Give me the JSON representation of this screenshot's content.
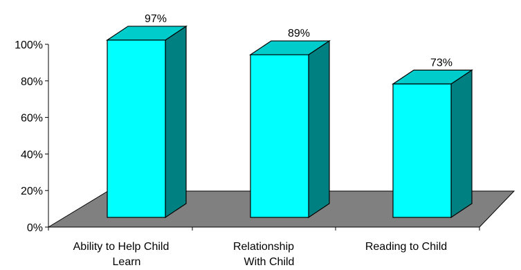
{
  "chart_data": {
    "type": "bar",
    "style": "3d-column",
    "title": "",
    "xlabel": "",
    "ylabel": "",
    "categories": [
      [
        "Ability to Help Child",
        "Learn"
      ],
      [
        "Relationship",
        "With Child"
      ],
      [
        "Reading to Child"
      ]
    ],
    "values": [
      97,
      89,
      73
    ],
    "data_labels": [
      "97%",
      "89%",
      "73%"
    ],
    "ylim": [
      0,
      100
    ],
    "y_ticks": [
      {
        "value": 0,
        "label": "0%"
      },
      {
        "value": 20,
        "label": "20%"
      },
      {
        "value": 40,
        "label": "40%"
      },
      {
        "value": 60,
        "label": "60%"
      },
      {
        "value": 80,
        "label": "80%"
      },
      {
        "value": 100,
        "label": "100%"
      }
    ],
    "grid": false,
    "legend": "none",
    "colors": {
      "bar_front": "#00FFFF",
      "bar_top": "#00CCCC",
      "bar_side": "#008080",
      "floor": "#808080",
      "outline": "#000000"
    }
  }
}
